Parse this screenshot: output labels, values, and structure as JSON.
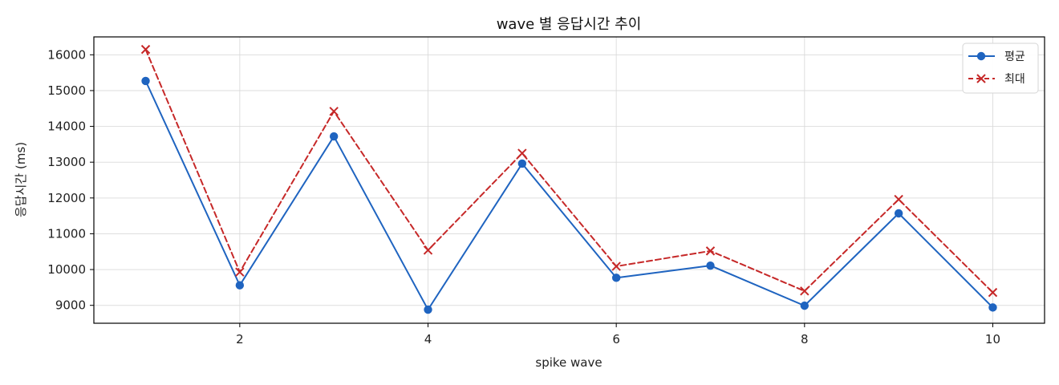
{
  "chart_data": {
    "type": "line",
    "title": "wave 별 응답시간 추이",
    "xlabel": "spike wave",
    "ylabel": "응답시간 (ms)",
    "xlim": [
      0.45,
      10.55
    ],
    "ylim": [
      8500,
      16500
    ],
    "xticks": [
      2,
      4,
      6,
      8,
      10
    ],
    "yticks": [
      9000,
      10000,
      11000,
      12000,
      13000,
      14000,
      15000,
      16000
    ],
    "grid": true,
    "legend_position": "top-right",
    "x": [
      1,
      2,
      3,
      4,
      5,
      6,
      7,
      8,
      9,
      10
    ],
    "series": [
      {
        "name": "평균",
        "values": [
          15270,
          9560,
          13720,
          8880,
          12960,
          9770,
          10110,
          8990,
          11570,
          8940
        ],
        "color": "#1f64c0",
        "line_style": "solid",
        "marker": "circle"
      },
      {
        "name": "최대",
        "values": [
          16150,
          9930,
          14420,
          10540,
          13250,
          10090,
          10520,
          9400,
          11960,
          9360
        ],
        "color": "#c62828",
        "line_style": "dashed",
        "marker": "x"
      }
    ]
  }
}
